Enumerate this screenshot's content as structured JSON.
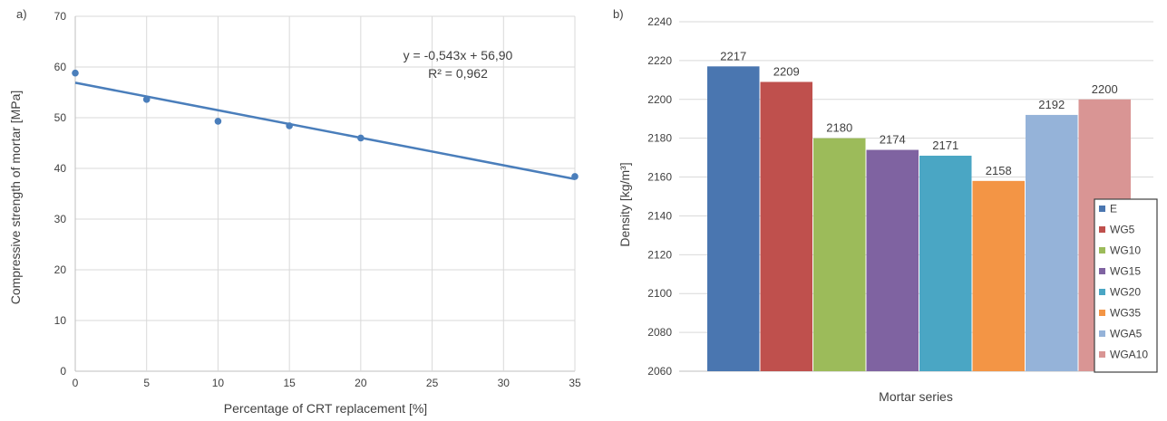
{
  "charts": [
    {
      "panel_label": "a)",
      "chart_data": {
        "type": "scatter",
        "x": [
          0,
          5,
          10,
          15,
          20,
          35
        ],
        "y": [
          58.8,
          53.6,
          49.3,
          48.4,
          46.0,
          38.4
        ],
        "trendline": {
          "slope": -0.543,
          "intercept": 56.9
        },
        "equation": "y = -0,543x + 56,90",
        "r_squared": "R² = 0,962",
        "xlabel": "Percentage of CRT replacement [%]",
        "ylabel": "Compressive strength of mortar [MPa]",
        "x_ticks": [
          "0",
          "5",
          "10",
          "15",
          "20",
          "25",
          "30",
          "35"
        ],
        "y_ticks": [
          "0",
          "10",
          "20",
          "30",
          "40",
          "50",
          "60",
          "70"
        ],
        "xlim": [
          0,
          35
        ],
        "ylim": [
          0,
          70
        ],
        "grid": true,
        "color": "#4a7ebb"
      }
    },
    {
      "panel_label": "b)",
      "chart_data": {
        "type": "bar",
        "categories": [
          "E",
          "WG5",
          "WG10",
          "WG15",
          "WG20",
          "WG35",
          "WGA5",
          "WGA10"
        ],
        "values": [
          2217,
          2209,
          2180,
          2174,
          2171,
          2158,
          2192,
          2200
        ],
        "data_labels": [
          "2217",
          "2209",
          "2180",
          "2174",
          "2171",
          "2158",
          "2192",
          "2200"
        ],
        "colors": [
          "#4a76b0",
          "#bf504d",
          "#9cbb5a",
          "#7f63a1",
          "#4aa6c4",
          "#f39545",
          "#95b3d9",
          "#d99594"
        ],
        "xlabel": "Mortar series",
        "ylabel": "Density [kg/m³]",
        "y_ticks": [
          "2060",
          "2080",
          "2100",
          "2120",
          "2140",
          "2160",
          "2180",
          "2200",
          "2220",
          "2240"
        ],
        "ylim": [
          2060,
          2240
        ],
        "grid": true,
        "legend_position": "right"
      }
    }
  ]
}
